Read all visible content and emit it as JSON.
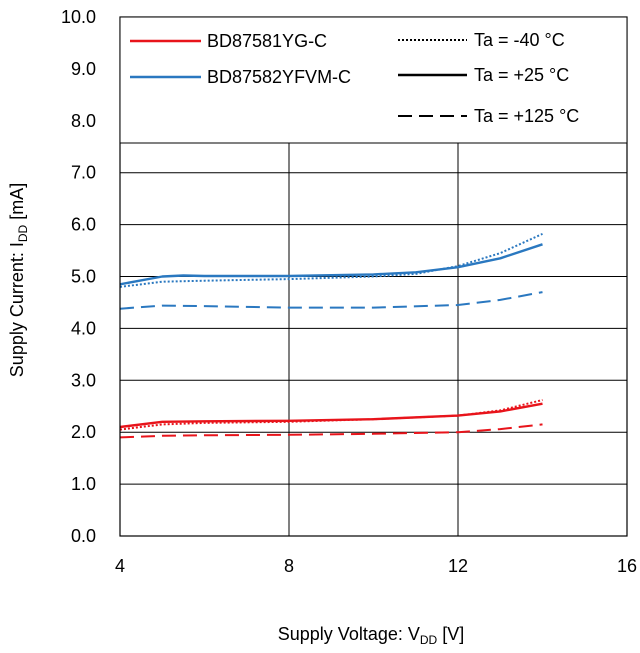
{
  "chart_data": {
    "type": "line",
    "xlabel": {
      "main": "Supply Voltage: V",
      "sub": "DD",
      "unit": " [V]"
    },
    "ylabel": {
      "main": "Supply Current: I",
      "sub": "DD",
      "unit": " [mA]"
    },
    "xlim": [
      4,
      16
    ],
    "ylim": [
      0,
      10
    ],
    "x_ticks": [
      4,
      8,
      12,
      16
    ],
    "x_tick_labels": [
      "4",
      "8",
      "12",
      "16"
    ],
    "y_ticks": [
      0,
      1,
      2,
      3,
      4,
      5,
      6,
      7,
      8,
      9,
      10
    ],
    "y_tick_labels": [
      "0.0",
      "1.0",
      "2.0",
      "3.0",
      "4.0",
      "5.0",
      "6.0",
      "7.0",
      "8.0",
      "9.0",
      "10.0"
    ],
    "grid": true,
    "legend_placement": "top, inside plot area",
    "device_legend": [
      {
        "label": "BD87581YG-C",
        "color": "#e8141b"
      },
      {
        "label": "BD87582YFVM-C",
        "color": "#2a78c0"
      }
    ],
    "temperature_legend": [
      {
        "label": "Ta = -40 °C",
        "style": "dotted"
      },
      {
        "label": "Ta = +25 °C",
        "style": "solid"
      },
      {
        "label": "Ta = +125 °C",
        "style": "dashed"
      }
    ],
    "series": [
      {
        "device": "BD87581YG-C",
        "temperature": "Ta = -40 °C",
        "style": "dotted",
        "color": "#e8141b",
        "x": [
          4,
          5,
          6,
          8,
          10,
          12,
          13,
          14
        ],
        "y": [
          2.05,
          2.15,
          2.18,
          2.2,
          2.25,
          2.32,
          2.42,
          2.62
        ]
      },
      {
        "device": "BD87581YG-C",
        "temperature": "Ta = +25 °C",
        "style": "solid",
        "color": "#e8141b",
        "x": [
          4,
          5,
          6,
          8,
          10,
          12,
          13,
          14
        ],
        "y": [
          2.1,
          2.2,
          2.21,
          2.22,
          2.25,
          2.32,
          2.4,
          2.55
        ]
      },
      {
        "device": "BD87581YG-C",
        "temperature": "Ta = +125 °C",
        "style": "dashed",
        "color": "#e8141b",
        "x": [
          4,
          5,
          6,
          8,
          10,
          12,
          13,
          14
        ],
        "y": [
          1.9,
          1.93,
          1.94,
          1.95,
          1.97,
          2.0,
          2.06,
          2.15
        ]
      },
      {
        "device": "BD87582YFVM-C",
        "temperature": "Ta = -40 °C",
        "style": "dotted",
        "color": "#2a78c0",
        "x": [
          4,
          5,
          6,
          8,
          10,
          11,
          12,
          13,
          14
        ],
        "y": [
          4.8,
          4.9,
          4.92,
          4.95,
          5.0,
          5.05,
          5.2,
          5.45,
          5.82
        ]
      },
      {
        "device": "BD87582YFVM-C",
        "temperature": "Ta = +25 °C",
        "style": "solid",
        "color": "#2a78c0",
        "x": [
          4,
          5,
          5.5,
          6,
          8,
          10,
          11,
          12,
          13,
          14
        ],
        "y": [
          4.85,
          5.0,
          5.02,
          5.01,
          5.01,
          5.04,
          5.08,
          5.18,
          5.35,
          5.62
        ]
      },
      {
        "device": "BD87582YFVM-C",
        "temperature": "Ta = +125 °C",
        "style": "dashed",
        "color": "#2a78c0",
        "x": [
          4,
          5,
          6,
          8,
          10,
          12,
          13,
          14
        ],
        "y": [
          4.38,
          4.44,
          4.43,
          4.4,
          4.4,
          4.45,
          4.55,
          4.7
        ]
      }
    ]
  }
}
